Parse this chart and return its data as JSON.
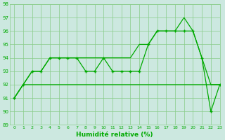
{
  "x": [
    0,
    1,
    2,
    3,
    4,
    5,
    6,
    7,
    8,
    9,
    10,
    11,
    12,
    13,
    14,
    15,
    16,
    17,
    18,
    19,
    20,
    21,
    22,
    23
  ],
  "line_top": [
    91,
    92,
    93,
    93,
    94,
    94,
    94,
    94,
    94,
    94,
    94,
    94,
    94,
    94,
    95,
    95,
    96,
    96,
    96,
    97,
    96,
    94,
    92,
    92
  ],
  "line_mid": [
    91,
    92,
    93,
    93,
    94,
    94,
    94,
    94,
    93,
    93,
    94,
    93,
    93,
    93,
    93,
    95,
    96,
    96,
    96,
    96,
    96,
    94,
    90,
    92
  ],
  "line_bot": [
    91,
    92,
    92,
    92,
    92,
    92,
    92,
    92,
    92,
    92,
    92,
    92,
    92,
    92,
    92,
    92,
    92,
    92,
    92,
    92,
    92,
    92,
    92,
    92
  ],
  "bg_color": "#cce8e0",
  "line_color": "#00aa00",
  "grid_color": "#88cc88",
  "xlabel": "Humidité relative (%)",
  "ylim": [
    89,
    98
  ],
  "xlim": [
    -0.5,
    23
  ],
  "yticks": [
    89,
    90,
    91,
    92,
    93,
    94,
    95,
    96,
    97,
    98
  ],
  "xticks": [
    0,
    1,
    2,
    3,
    4,
    5,
    6,
    7,
    8,
    9,
    10,
    11,
    12,
    13,
    14,
    15,
    16,
    17,
    18,
    19,
    20,
    21,
    22,
    23
  ]
}
